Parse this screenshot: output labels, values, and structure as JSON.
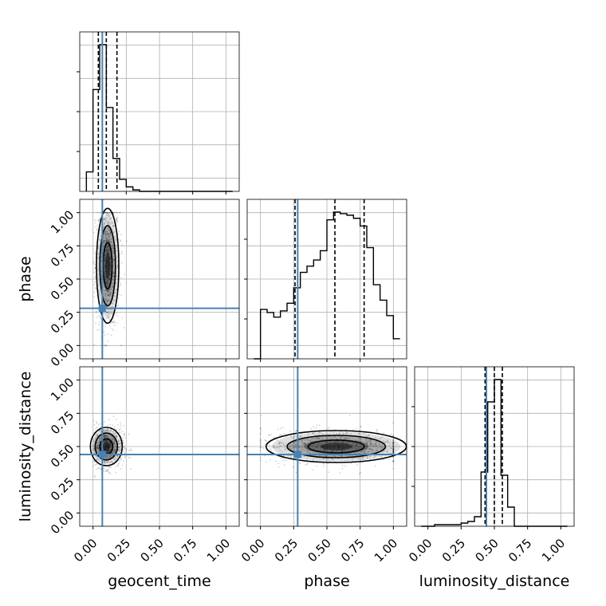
{
  "chart_data": {
    "type": "corner",
    "parameters": [
      "geocent_time",
      "phase",
      "luminosity_distance"
    ],
    "axis_range": [
      -0.1,
      1.1
    ],
    "tick_values": [
      0.0,
      0.25,
      0.5,
      0.75,
      1.0
    ],
    "tick_labels": [
      "0.00",
      "0.25",
      "0.50",
      "0.75",
      "1.00"
    ],
    "grid": true,
    "truth_color": "#4682b4",
    "truths": {
      "geocent_time": 0.07,
      "phase": 0.28,
      "luminosity_distance": 0.44
    },
    "histograms": {
      "geocent_time": {
        "bins": [
          -0.05,
          0.0,
          0.05,
          0.1,
          0.15,
          0.2,
          0.25,
          0.3,
          0.35,
          0.4,
          0.45,
          0.5,
          0.55,
          0.6,
          0.65,
          0.7,
          0.75,
          0.8,
          0.85,
          0.9,
          0.95,
          1.0,
          1.05
        ],
        "counts": [
          0.13,
          0.68,
          0.98,
          0.56,
          0.22,
          0.08,
          0.03,
          0.01,
          0,
          0,
          0,
          0,
          0,
          0,
          0,
          0,
          0,
          0,
          0,
          0,
          0,
          0
        ],
        "quantiles": [
          0.04,
          0.1,
          0.18
        ]
      },
      "phase": {
        "bins": [
          -0.05,
          0.0,
          0.05,
          0.1,
          0.15,
          0.2,
          0.25,
          0.3,
          0.35,
          0.4,
          0.45,
          0.5,
          0.55,
          0.6,
          0.65,
          0.7,
          0.75,
          0.8,
          0.85,
          0.9,
          0.95,
          1.0,
          1.05
        ],
        "counts": [
          0,
          0.32,
          0.3,
          0.27,
          0.31,
          0.36,
          0.46,
          0.56,
          0.6,
          0.64,
          0.7,
          0.9,
          0.95,
          0.94,
          0.93,
          0.91,
          0.86,
          0.72,
          0.48,
          0.38,
          0.28,
          0.13
        ],
        "quantiles": [
          0.26,
          0.56,
          0.78
        ]
      },
      "luminosity_distance": {
        "bins": [
          -0.05,
          0.0,
          0.05,
          0.1,
          0.15,
          0.2,
          0.25,
          0.3,
          0.35,
          0.4,
          0.45,
          0.5,
          0.55,
          0.6,
          0.65,
          0.7,
          0.75,
          0.8,
          0.85,
          0.9,
          0.95,
          1.0,
          1.05
        ],
        "counts": [
          0,
          0,
          0.01,
          0.01,
          0.01,
          0.01,
          0.02,
          0.03,
          0.06,
          0.34,
          0.78,
          0.92,
          0.32,
          0.12,
          0,
          0,
          0,
          0,
          0,
          0,
          0,
          0
        ],
        "quantiles": [
          0.43,
          0.5,
          0.56
        ]
      }
    },
    "pairs": [
      {
        "x": "geocent_time",
        "y": "phase",
        "mean": [
          0.11,
          0.6
        ],
        "sd": [
          0.035,
          0.18
        ]
      },
      {
        "x": "geocent_time",
        "y": "luminosity_distance",
        "mean": [
          0.1,
          0.5
        ],
        "sd": [
          0.05,
          0.06
        ]
      },
      {
        "x": "phase",
        "y": "luminosity_distance",
        "mean": [
          0.57,
          0.5
        ],
        "sd": [
          0.22,
          0.05
        ]
      }
    ]
  }
}
